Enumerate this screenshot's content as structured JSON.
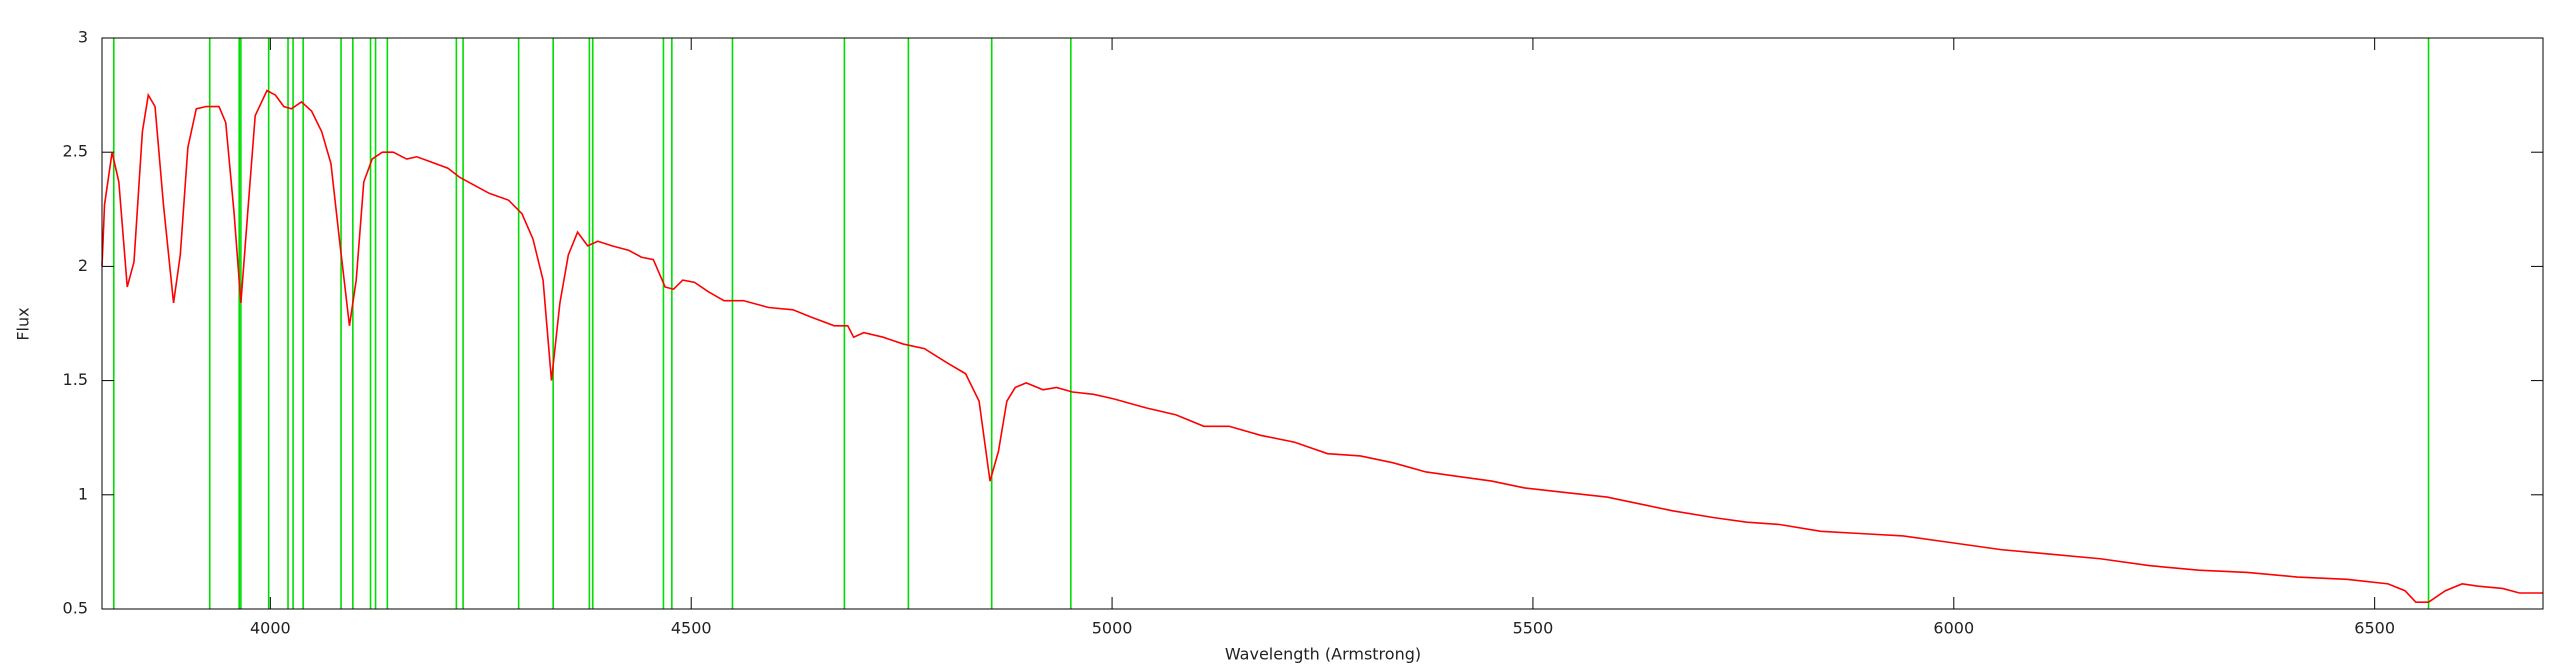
{
  "chart_data": {
    "type": "line",
    "xlabel": "Wavelength (Armstrong)",
    "ylabel": "Flux",
    "xlim": [
      3800,
      6700
    ],
    "ylim": [
      0.5,
      3
    ],
    "xticks": [
      4000,
      4500,
      5000,
      5500,
      6000,
      6500
    ],
    "yticks": [
      0.5,
      1,
      1.5,
      2,
      2.5,
      3
    ],
    "grid": false,
    "vertical_lines": {
      "color": "#00dd00",
      "x": [
        3814,
        3928,
        3963,
        3965,
        3998,
        4021,
        4027,
        4039,
        4084,
        4098,
        4119,
        4125,
        4139,
        4221,
        4229,
        4295,
        4336,
        4379,
        4383,
        4467,
        4477,
        4549,
        4682,
        4758,
        4857,
        4951,
        6564
      ]
    },
    "series": [
      {
        "color": "#ff0000",
        "x": [
          3800,
          3803,
          3812,
          3820,
          3830,
          3838,
          3848,
          3855,
          3863,
          3873,
          3885,
          3893,
          3902,
          3912,
          3924,
          3939,
          3947,
          3957,
          3965,
          3973,
          3982,
          3996,
          4006,
          4016,
          4025,
          4037,
          4049,
          4061,
          4072,
          4082,
          4094,
          4102,
          4111,
          4121,
          4133,
          4146,
          4162,
          4174,
          4189,
          4211,
          4225,
          4240,
          4260,
          4283,
          4299,
          4312,
          4324,
          4334,
          4344,
          4354,
          4365,
          4377,
          4389,
          4406,
          4426,
          4441,
          4455,
          4469,
          4479,
          4490,
          4504,
          4520,
          4539,
          4562,
          4592,
          4621,
          4641,
          4670,
          4686,
          4693,
          4705,
          4728,
          4752,
          4777,
          4803,
          4826,
          4842,
          4855,
          4865,
          4875,
          4885,
          4898,
          4918,
          4934,
          4953,
          4978,
          5002,
          5041,
          5076,
          5109,
          5139,
          5177,
          5217,
          5256,
          5295,
          5334,
          5373,
          5412,
          5451,
          5490,
          5539,
          5588,
          5627,
          5666,
          5715,
          5754,
          5793,
          5842,
          5891,
          5940,
          5998,
          6056,
          6115,
          6174,
          6232,
          6291,
          6349,
          6408,
          6467,
          6516,
          6536,
          6549,
          6564,
          6584,
          6604,
          6623,
          6652,
          6672,
          6700
        ],
        "values": [
          2.0,
          2.27,
          2.5,
          2.37,
          1.91,
          2.02,
          2.59,
          2.75,
          2.7,
          2.27,
          1.84,
          2.05,
          2.52,
          2.69,
          2.7,
          2.7,
          2.63,
          2.23,
          1.84,
          2.23,
          2.66,
          2.77,
          2.75,
          2.7,
          2.69,
          2.72,
          2.68,
          2.59,
          2.45,
          2.12,
          1.74,
          1.94,
          2.37,
          2.47,
          2.5,
          2.5,
          2.47,
          2.48,
          2.46,
          2.43,
          2.39,
          2.36,
          2.32,
          2.29,
          2.23,
          2.12,
          1.94,
          1.5,
          1.84,
          2.05,
          2.15,
          2.09,
          2.11,
          2.09,
          2.07,
          2.04,
          2.03,
          1.91,
          1.9,
          1.94,
          1.93,
          1.89,
          1.85,
          1.85,
          1.82,
          1.81,
          1.78,
          1.74,
          1.74,
          1.69,
          1.71,
          1.69,
          1.66,
          1.64,
          1.58,
          1.53,
          1.41,
          1.06,
          1.19,
          1.41,
          1.47,
          1.49,
          1.46,
          1.47,
          1.45,
          1.44,
          1.42,
          1.38,
          1.35,
          1.3,
          1.3,
          1.26,
          1.23,
          1.18,
          1.17,
          1.14,
          1.1,
          1.08,
          1.06,
          1.03,
          1.01,
          0.99,
          0.96,
          0.93,
          0.9,
          0.88,
          0.87,
          0.84,
          0.83,
          0.82,
          0.79,
          0.76,
          0.74,
          0.72,
          0.69,
          0.67,
          0.66,
          0.64,
          0.63,
          0.61,
          0.58,
          0.53,
          0.53,
          0.58,
          0.61,
          0.6,
          0.59,
          0.57,
          0.57
        ]
      }
    ]
  }
}
